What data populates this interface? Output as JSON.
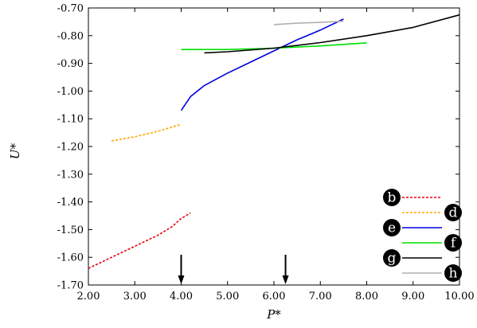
{
  "chart_data": {
    "type": "line",
    "title": "",
    "xlabel": "P*",
    "ylabel": "U*",
    "xlim": [
      2.0,
      10.0
    ],
    "ylim": [
      -1.7,
      -0.7
    ],
    "x_ticks": [
      "2.00",
      "3.00",
      "4.00",
      "5.00",
      "6.00",
      "7.00",
      "8.00",
      "9.00",
      "10.00"
    ],
    "y_ticks": [
      "-0.70",
      "-0.80",
      "-0.90",
      "-1.00",
      "-1.10",
      "-1.20",
      "-1.30",
      "-1.40",
      "-1.50",
      "-1.60",
      "-1.70"
    ],
    "grid": false,
    "legend_position": "lower-right",
    "series": [
      {
        "name": "b",
        "color": "#e8000b",
        "dash": "dashed",
        "x": [
          2.0,
          2.5,
          3.0,
          3.5,
          3.8,
          4.0,
          4.2
        ],
        "y": [
          -1.64,
          -1.6,
          -1.56,
          -1.52,
          -1.49,
          -1.46,
          -1.44
        ]
      },
      {
        "name": "d",
        "color": "#ffa500",
        "dash": "dashed",
        "x": [
          2.5,
          3.0,
          3.5,
          4.0
        ],
        "y": [
          -1.18,
          -1.165,
          -1.145,
          -1.12
        ]
      },
      {
        "name": "e",
        "color": "#0000e0",
        "dash": "solid",
        "x": [
          4.0,
          4.2,
          4.5,
          5.0,
          5.5,
          6.0,
          6.5,
          7.0,
          7.5
        ],
        "y": [
          -1.07,
          -1.02,
          -0.98,
          -0.935,
          -0.895,
          -0.855,
          -0.815,
          -0.78,
          -0.74
        ]
      },
      {
        "name": "f",
        "color": "#00e000",
        "dash": "solid",
        "x": [
          4.0,
          5.0,
          6.0,
          7.0,
          8.0
        ],
        "y": [
          -0.85,
          -0.85,
          -0.845,
          -0.837,
          -0.826
        ]
      },
      {
        "name": "g",
        "color": "#000000",
        "dash": "solid",
        "x": [
          4.5,
          5.0,
          6.0,
          7.0,
          8.0,
          9.0,
          10.0
        ],
        "y": [
          -0.862,
          -0.858,
          -0.845,
          -0.825,
          -0.8,
          -0.77,
          -0.725
        ]
      },
      {
        "name": "h",
        "color": "#b0b0b0",
        "dash": "solid",
        "x": [
          6.0,
          6.5,
          7.0,
          7.5
        ],
        "y": [
          -0.76,
          -0.755,
          -0.752,
          -0.748
        ]
      }
    ],
    "arrows_x": [
      4.0,
      6.25
    ]
  }
}
